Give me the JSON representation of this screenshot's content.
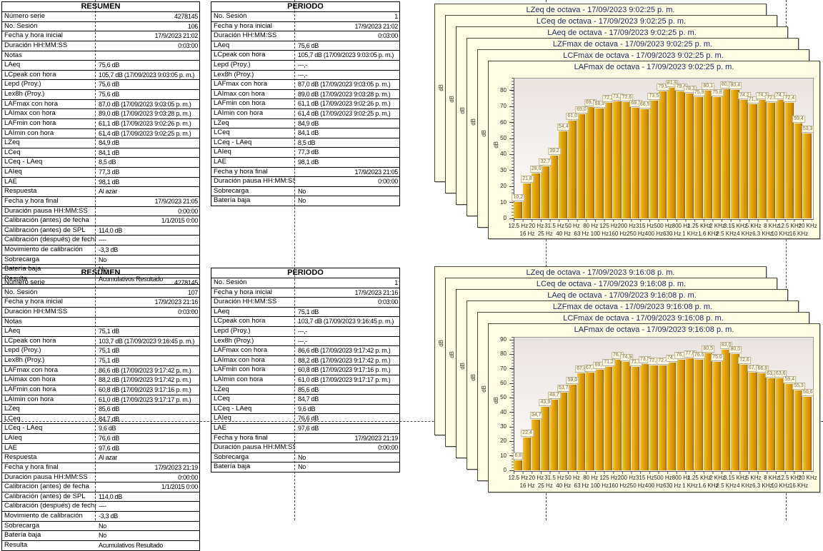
{
  "report": {
    "page_break_lines": {
      "vertical_x": [
        133,
        412,
        764,
        1100
      ],
      "horizontal_y": [
        590
      ]
    },
    "colors": {
      "window_bg": "#fffee4",
      "window_title_text": "#1f2a63",
      "bar_gold": "#e2a407",
      "bar_gold_dark": "#9c6500",
      "value_label_bg": "#fffbe6",
      "value_label_text": "#7c6a45",
      "page_break_line": "#4a4a4a"
    }
  },
  "tables": [
    {
      "title": "RESUMEN",
      "rows": [
        {
          "label": "Número serie",
          "value": "4278145",
          "align": "r"
        },
        {
          "label": "No. Sesión",
          "value": "106",
          "align": "r"
        },
        {
          "label": "Fecha y hora inicial",
          "value": "17/9/2023 21:02",
          "align": "r"
        },
        {
          "label": "Duración HH:MM:SS",
          "value": "0:03:00",
          "align": "r"
        },
        {
          "label": "Notas",
          "value": "",
          "align": "l"
        },
        {
          "label": "LAeq",
          "value": "75,6 dB",
          "align": "l"
        },
        {
          "label": "LCpeak con hora",
          "value": "105,7 dB (17/09/2023 9:03:05 p. m.)",
          "align": "l"
        },
        {
          "label": "Lepd (Proy.)",
          "value": "75,6 dB",
          "align": "l"
        },
        {
          "label": "Lex8h (Proy.)",
          "value": "75,6 dB",
          "align": "l"
        },
        {
          "label": "LAFmax con hora",
          "value": "87,0 dB (17/09/2023 9:03:05 p. m.)",
          "align": "l"
        },
        {
          "label": "LAImax con hora",
          "value": "89,0 dB (17/09/2023 9:03:28 p. m.)",
          "align": "l"
        },
        {
          "label": "LAFmin con hora",
          "value": "61,1 dB (17/09/2023 9:02:26 p. m.)",
          "align": "l"
        },
        {
          "label": "LAImin con hora",
          "value": "61,4 dB (17/09/2023 9:02:25 p. m.)",
          "align": "l"
        },
        {
          "label": "LZeq",
          "value": "84,9 dB",
          "align": "l"
        },
        {
          "label": "LCeq",
          "value": "84,1 dB",
          "align": "l"
        },
        {
          "label": "LCeq - LAeq",
          "value": "8,5 dB",
          "align": "l"
        },
        {
          "label": "LAIeq",
          "value": "77,3 dB",
          "align": "l"
        },
        {
          "label": "LAE",
          "value": "98,1 dB",
          "align": "l"
        },
        {
          "label": "Respuesta",
          "value": "Al azar",
          "align": "l"
        },
        {
          "label": "Fecha y hora final",
          "value": "17/9/2023 21:05",
          "align": "r"
        },
        {
          "label": "Duración pausa HH:MM:SS",
          "value": "0:00:00",
          "align": "r"
        },
        {
          "label": "Calibración (antes) de fecha",
          "value": "1/1/2015 0:00",
          "align": "r"
        },
        {
          "label": "Calibración (antes) de SPL",
          "value": "114,0 dB",
          "align": "l"
        },
        {
          "label": "Calibración (después) de fecha",
          "value": "----",
          "align": "l"
        },
        {
          "label": "Movimiento de calibración",
          "value": "-3,3 dB",
          "align": "l"
        },
        {
          "label": "Sobrecarga",
          "value": "No",
          "align": "l"
        },
        {
          "label": "Batería baja",
          "value": "No",
          "align": "l"
        },
        {
          "label": "Resulta",
          "value": "Acumulativos Resultado",
          "align": "l"
        }
      ]
    },
    {
      "title": "PERIODO",
      "rows": [
        {
          "label": "No. Sesión",
          "value": "1",
          "align": "r"
        },
        {
          "label": "Fecha y hora inicial",
          "value": "17/9/2023 21:02",
          "align": "r"
        },
        {
          "label": "Duración HH:MM:SS",
          "value": "0:03:00",
          "align": "r"
        },
        {
          "label": "LAeq",
          "value": "75,6 dB",
          "align": "l"
        },
        {
          "label": "LCpeak con hora",
          "value": "105,7 dB (17/09/2023 9:03:05 p. m.)",
          "align": "l"
        },
        {
          "label": "Lepd (Proy.)",
          "value": "---,-",
          "align": "l"
        },
        {
          "label": "Lex8h (Proy.)",
          "value": "---,-",
          "align": "l"
        },
        {
          "label": "LAFmax con hora",
          "value": "87,0 dB (17/09/2023 9:03:05 p. m.)",
          "align": "l"
        },
        {
          "label": "LAImax con hora",
          "value": "89,0 dB (17/09/2023 9:03:28 p. m.)",
          "align": "l"
        },
        {
          "label": "LAFmin con hora",
          "value": "61,1 dB (17/09/2023 9:02:26 p. m.)",
          "align": "l"
        },
        {
          "label": "LAImin con hora",
          "value": "61,4 dB (17/09/2023 9:02:25 p. m.)",
          "align": "l"
        },
        {
          "label": "LZeq",
          "value": "84,9 dB",
          "align": "l"
        },
        {
          "label": "LCeq",
          "value": "84,1 dB",
          "align": "l"
        },
        {
          "label": "LCeq - LAeq",
          "value": "8,5 dB",
          "align": "l"
        },
        {
          "label": "LAIeq",
          "value": "77,3 dB",
          "align": "l"
        },
        {
          "label": "LAE",
          "value": "98,1 dB",
          "align": "l"
        },
        {
          "label": "Fecha y hora final",
          "value": "17/9/2023 21:05",
          "align": "r"
        },
        {
          "label": "Duración pausa HH:MM:SS",
          "value": "0:00:00",
          "align": "r"
        },
        {
          "label": "Sobrecarga",
          "value": "No",
          "align": "l"
        },
        {
          "label": "Batería baja",
          "value": "No",
          "align": "l"
        }
      ]
    },
    {
      "title": "RESUMEN",
      "rows": [
        {
          "label": "Número serie",
          "value": "4278145",
          "align": "r"
        },
        {
          "label": "No. Sesión",
          "value": "107",
          "align": "r"
        },
        {
          "label": "Fecha y hora inicial",
          "value": "17/9/2023 21:16",
          "align": "r"
        },
        {
          "label": "Duración HH:MM:SS",
          "value": "0:03:00",
          "align": "r"
        },
        {
          "label": "Notas",
          "value": "",
          "align": "l"
        },
        {
          "label": "LAeq",
          "value": "75,1 dB",
          "align": "l"
        },
        {
          "label": "LCpeak con hora",
          "value": "103,7 dB (17/09/2023 9:16:45 p. m.)",
          "align": "l"
        },
        {
          "label": "Lepd (Proy.)",
          "value": "75,1 dB",
          "align": "l"
        },
        {
          "label": "Lex8h (Proy.)",
          "value": "75,1 dB",
          "align": "l"
        },
        {
          "label": "LAFmax con hora",
          "value": "86,6 dB (17/09/2023 9:17:42 p. m.)",
          "align": "l"
        },
        {
          "label": "LAImax con hora",
          "value": "88,2 dB (17/09/2023 9:17:42 p. m.)",
          "align": "l"
        },
        {
          "label": "LAFmin con hora",
          "value": "60,8 dB (17/09/2023 9:17:16 p. m.)",
          "align": "l"
        },
        {
          "label": "LAImin con hora",
          "value": "61,0 dB (17/09/2023 9:17:17 p. m.)",
          "align": "l"
        },
        {
          "label": "LZeq",
          "value": "85,6 dB",
          "align": "l"
        },
        {
          "label": "LCeq",
          "value": "84,7 dB",
          "align": "l"
        },
        {
          "label": "LCeq - LAeq",
          "value": "9,6 dB",
          "align": "l"
        },
        {
          "label": "LAIeq",
          "value": "76,6 dB",
          "align": "l"
        },
        {
          "label": "LAE",
          "value": "97,6 dB",
          "align": "l"
        },
        {
          "label": "Respuesta",
          "value": "Al azar",
          "align": "l"
        },
        {
          "label": "Fecha y hora final",
          "value": "17/9/2023 21:19",
          "align": "r"
        },
        {
          "label": "Duración pausa HH:MM:SS",
          "value": "0:00:00",
          "align": "r"
        },
        {
          "label": "Calibración (antes) de fecha",
          "value": "1/1/2015 0:00",
          "align": "r"
        },
        {
          "label": "Calibración (antes) de SPL",
          "value": "114,0 dB",
          "align": "l"
        },
        {
          "label": "Calibración (después) de fecha",
          "value": "----",
          "align": "l"
        },
        {
          "label": "Movimiento de calibración",
          "value": "-3,3 dB",
          "align": "l"
        },
        {
          "label": "Sobrecarga",
          "value": "No",
          "align": "l"
        },
        {
          "label": "Batería baja",
          "value": "No",
          "align": "l"
        },
        {
          "label": "Resulta",
          "value": "Acumulativos Resultado",
          "align": "l"
        }
      ]
    },
    {
      "title": "PERIODO",
      "rows": [
        {
          "label": "No. Sesión",
          "value": "1",
          "align": "r"
        },
        {
          "label": "Fecha y hora inicial",
          "value": "17/9/2023 21:16",
          "align": "r"
        },
        {
          "label": "Duración HH:MM:SS",
          "value": "0:03:00",
          "align": "r"
        },
        {
          "label": "LAeq",
          "value": "75,1 dB",
          "align": "l"
        },
        {
          "label": "LCpeak con hora",
          "value": "103,7 dB (17/09/2023 9:16:45 p. m.)",
          "align": "l"
        },
        {
          "label": "Lepd (Proy.)",
          "value": "---,-",
          "align": "l"
        },
        {
          "label": "Lex8h (Proy.)",
          "value": "---,-",
          "align": "l"
        },
        {
          "label": "LAFmax con hora",
          "value": "86,6 dB (17/09/2023 9:17:42 p. m.)",
          "align": "l"
        },
        {
          "label": "LAImax con hora",
          "value": "88,2 dB (17/09/2023 9:17:42 p. m.)",
          "align": "l"
        },
        {
          "label": "LAFmin con hora",
          "value": "60,8 dB (17/09/2023 9:17:16 p. m.)",
          "align": "l"
        },
        {
          "label": "LAImin con hora",
          "value": "61,0 dB (17/09/2023 9:17:17 p. m.)",
          "align": "l"
        },
        {
          "label": "LZeq",
          "value": "85,6 dB",
          "align": "l"
        },
        {
          "label": "LCeq",
          "value": "84,7 dB",
          "align": "l"
        },
        {
          "label": "LCeq - LAeq",
          "value": "9,6 dB",
          "align": "l"
        },
        {
          "label": "LAIeq",
          "value": "76,6 dB",
          "align": "l"
        },
        {
          "label": "LAE",
          "value": "97,6 dB",
          "align": "l"
        },
        {
          "label": "Fecha y hora final",
          "value": "17/9/2023 21:19",
          "align": "r"
        },
        {
          "label": "Duración pausa HH:MM:SS",
          "value": "0:00:00",
          "align": "r"
        },
        {
          "label": "Sobrecarga",
          "value": "No",
          "align": "l"
        },
        {
          "label": "Batería baja",
          "value": "No",
          "align": "l"
        }
      ]
    }
  ],
  "chart_data": [
    {
      "type": "bar",
      "title": "LAFmax de octava  -  17/09/2023 9:02:25 p. m.",
      "window_stack_titles": [
        "LZeq de octava  -  17/09/2023 9:02:25 p. m.",
        "LCeq de octava  -  17/09/2023 9:02:25 p. m.",
        "LAeq de octava  -  17/09/2023 9:02:25 p. m.",
        "LZFmax de octava  -  17/09/2023 9:02:25 p. m.",
        "LCFmax de octava  -  17/09/2023 9:02:25 p. m.",
        "LAFmax de octava  -  17/09/2023 9:02:25 p. m."
      ],
      "categories": [
        "12.5 Hz",
        "16 Hz",
        "20 Hz",
        "25 Hz",
        "31.5 Hz",
        "40 Hz",
        "50 Hz",
        "63 Hz",
        "80 Hz",
        "100 Hz",
        "125 Hz",
        "160 Hz",
        "200 Hz",
        "250 Hz",
        "315 Hz",
        "400 Hz",
        "500 Hz",
        "630 Hz",
        "800 Hz",
        "1 KHz",
        "1.25 KHz",
        "1.6 KHz",
        "2 KHz",
        "2.5 KHz",
        "3.15 KHz",
        "4 KHz",
        "5 KHz",
        "6.3 KHz",
        "8 KHz",
        "10 KHz",
        "12.5 KHz",
        "16 KHz",
        "20 KHz"
      ],
      "values": [
        10.2,
        21.8,
        28.0,
        32.7,
        39.2,
        54.4,
        61.0,
        65.0,
        69.5,
        68.9,
        72.2,
        73.2,
        72.6,
        69.1,
        68.5,
        73.5,
        79.5,
        81.8,
        79.4,
        78.2,
        75.9,
        80.1,
        75.8,
        80.7,
        80.4,
        74.2,
        71.5,
        74.2,
        72.5,
        74.1,
        72.4,
        59.4,
        53.3
      ],
      "value_labels": [
        "10,2",
        "21,8",
        "28,0",
        "32,7",
        "39,2",
        "54,4",
        "61,0",
        "65,0",
        "69,5",
        "68,9",
        "72,2",
        "73,2",
        "72,6",
        "69,1",
        "68,5",
        "73,5",
        "79,5",
        "81,8",
        "79,4",
        "78,2",
        "75,9",
        "80,1",
        "75,8",
        "80,7",
        "80,4",
        "74,2",
        "71,5",
        "74,2",
        "72,5",
        "74,1",
        "72,4",
        "59,4",
        "53,3"
      ],
      "xlabel": "",
      "ylabel": "dB",
      "ylim": [
        0,
        88
      ],
      "ytick_step": 10,
      "ytick_max_label": 80,
      "grid": false,
      "legend": false
    },
    {
      "type": "bar",
      "title": "LAFmax de octava  -  17/09/2023 9:16:08 p. m.",
      "window_stack_titles": [
        "LZeq de octava  -  17/09/2023 9:16:08 p. m.",
        "LCeq de octava  -  17/09/2023 9:16:08 p. m.",
        "LAeq de octava  -  17/09/2023 9:16:08 p. m.",
        "LZFmax de octava  -  17/09/2023 9:16:08 p. m.",
        "LCFmax de octava  -  17/09/2023 9:16:08 p. m.",
        "LAFmax de octava  -  17/09/2023 9:16:08 p. m."
      ],
      "categories": [
        "12.5 Hz",
        "16 Hz",
        "20 Hz",
        "25 Hz",
        "31.5 Hz",
        "40 Hz",
        "50 Hz",
        "63 Hz",
        "80 Hz",
        "100 Hz",
        "125 Hz",
        "160 Hz",
        "200 Hz",
        "250 Hz",
        "315 Hz",
        "400 Hz",
        "500 Hz",
        "630 Hz",
        "800 Hz",
        "1 KHz",
        "1.25 KHz",
        "1.6 KHz",
        "2 KHz",
        "2.5 KHz",
        "3.15 KHz",
        "4 KHz",
        "5 KHz",
        "6.3 KHz",
        "8 KHz",
        "10 KHz",
        "12.5 KHz",
        "16 KHz",
        "20 KHz"
      ],
      "values": [
        6.8,
        22.4,
        34.7,
        43.9,
        48.7,
        53.7,
        59.0,
        67.0,
        67.3,
        69.6,
        71.2,
        76.1,
        74.9,
        71.3,
        73.5,
        72.2,
        72.4,
        74.3,
        76.1,
        77.0,
        76.5,
        80.5,
        75.0,
        83.0,
        80.0,
        72.6,
        67.6,
        66.8,
        63.3,
        63.6,
        59.4,
        55.3,
        50.6
      ],
      "value_labels": [
        "6,8",
        "22,4",
        "34,7",
        "43,9",
        "48,7",
        "53,7",
        "59,0",
        "67,0",
        "67,3",
        "69,6",
        "71,2",
        "76,1",
        "74,9",
        "71,3",
        "73,5",
        "72,2",
        "72,4",
        "74,3",
        "76,1",
        "77,0",
        "76,5",
        "80,5",
        "75,0",
        "83,0",
        "80,0",
        "72,6",
        "67,6",
        "66,8",
        "63,3",
        "63,6",
        "59,4",
        "55,3",
        "50,6"
      ],
      "xlabel": "",
      "ylabel": "dB",
      "ylim": [
        0,
        92
      ],
      "ytick_step": 10,
      "ytick_max_label": 90,
      "grid": false,
      "legend": false
    }
  ]
}
